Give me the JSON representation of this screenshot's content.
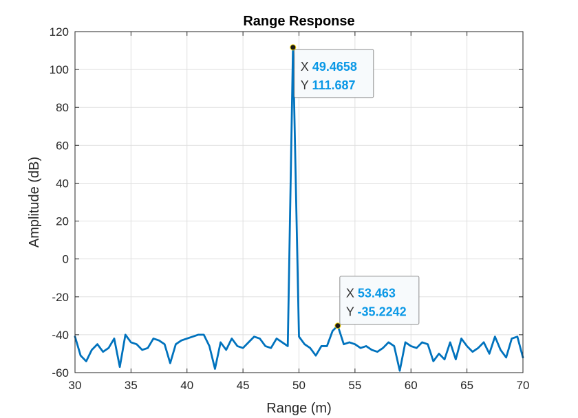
{
  "chart_data": {
    "type": "line",
    "title": "Range Response",
    "xlabel": "Range (m)",
    "ylabel": "Amplitude (dB)",
    "xlim": [
      30,
      70
    ],
    "ylim": [
      -60,
      120
    ],
    "xticks": [
      30,
      35,
      40,
      45,
      50,
      55,
      60,
      65,
      70
    ],
    "yticks": [
      -60,
      -40,
      -20,
      0,
      20,
      40,
      60,
      80,
      100,
      120
    ],
    "grid": true,
    "line_color": "#0072bd",
    "series": [
      {
        "x": [
          30.0,
          30.5,
          31.0,
          31.5,
          32.0,
          32.5,
          33.0,
          33.5,
          34.0,
          34.5,
          35.0,
          35.5,
          36.0,
          36.5,
          37.0,
          37.5,
          38.0,
          38.5,
          39.0,
          39.5,
          40.0,
          40.5,
          41.0,
          41.5,
          42.0,
          42.5,
          43.0,
          43.5,
          44.0,
          44.5,
          45.0,
          45.5,
          46.0,
          46.5,
          47.0,
          47.5,
          48.0,
          48.5,
          49.0,
          49.4658,
          50.0,
          50.5,
          51.0,
          51.5,
          52.0,
          52.5,
          53.0,
          53.463,
          54.0,
          54.5,
          55.0,
          55.5,
          56.0,
          56.5,
          57.0,
          57.5,
          58.0,
          58.5,
          59.0,
          59.5,
          60.0,
          60.5,
          61.0,
          61.5,
          62.0,
          62.5,
          63.0,
          63.5,
          64.0,
          64.5,
          65.0,
          65.5,
          66.0,
          66.5,
          67.0,
          67.5,
          68.0,
          68.5,
          69.0,
          69.5,
          70.0
        ],
        "y": [
          -41,
          -51,
          -54,
          -48,
          -45,
          -49,
          -47,
          -42,
          -57,
          -40,
          -44,
          -45,
          -48,
          -47,
          -42,
          -43,
          -45,
          -55,
          -45,
          -43,
          -42,
          -41,
          -40,
          -40,
          -46,
          -58,
          -44,
          -48,
          -42,
          -46,
          -47,
          -44,
          -41,
          -42,
          -46,
          -47,
          -42,
          -44,
          -46,
          111.687,
          -41,
          -45,
          -47,
          -51,
          -46,
          -46,
          -38,
          -35.2242,
          -45,
          -44,
          -45,
          -47,
          -46,
          -48,
          -49,
          -47,
          -44,
          -46,
          -59,
          -44,
          -46,
          -47,
          -44,
          -45,
          -54,
          -50,
          -53,
          -44,
          -53,
          -42,
          -46,
          -49,
          -47,
          -44,
          -50,
          -41,
          -48,
          -52,
          -42,
          -41,
          -52
        ]
      }
    ],
    "annotations": [
      {
        "x_label": "X",
        "x_value": "49.4658",
        "y_label": "Y",
        "y_value": "111.687",
        "x": 49.4658,
        "y": 111.687
      },
      {
        "x_label": "X",
        "x_value": "53.463",
        "y_label": "Y",
        "y_value": "-35.2242",
        "x": 53.463,
        "y": -35.2242
      }
    ]
  }
}
